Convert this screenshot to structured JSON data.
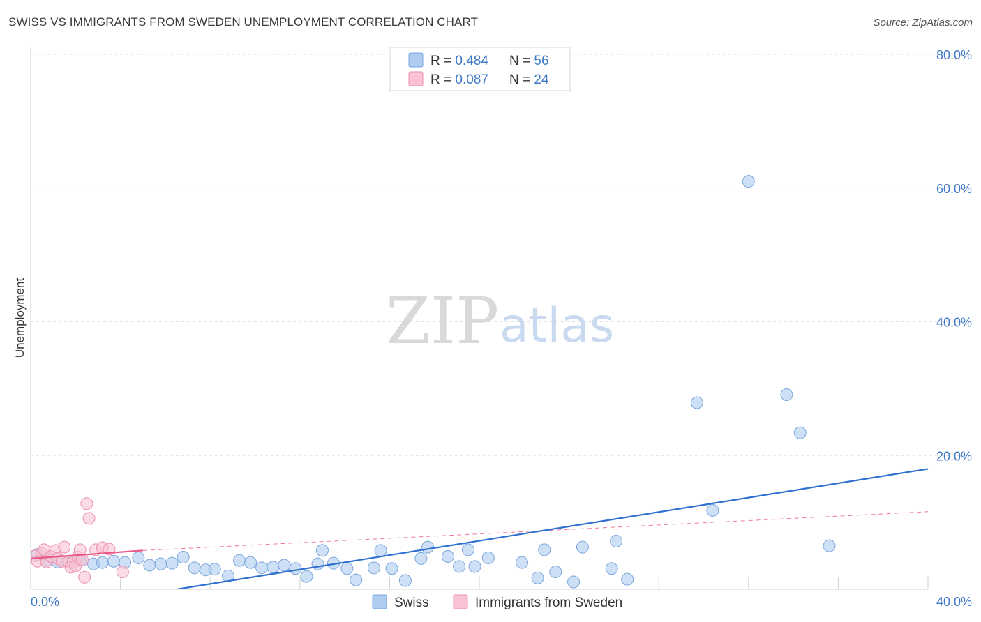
{
  "title": "SWISS VS IMMIGRANTS FROM SWEDEN UNEMPLOYMENT CORRELATION CHART",
  "source": "Source: ZipAtlas.com",
  "watermark": {
    "zip": "ZIP",
    "atlas": "atlas"
  },
  "legend_stats": [
    {
      "r_label": "R = ",
      "r_value": "0.484",
      "n_label": "N = ",
      "n_value": "56",
      "color": "#aecbf0",
      "stroke": "#7aa6dc"
    },
    {
      "r_label": "R = ",
      "r_value": "0.087",
      "n_label": "N = ",
      "n_value": "24",
      "color": "#f9c3d3",
      "stroke": "#ec8fab"
    }
  ],
  "chart_data": {
    "type": "scatter",
    "title": "SWISS VS IMMIGRANTS FROM SWEDEN UNEMPLOYMENT CORRELATION CHART",
    "xlabel": "",
    "ylabel": "Unemployment",
    "xlim": [
      0,
      40
    ],
    "ylim": [
      0,
      80
    ],
    "x_tick_labels": [
      "0.0%",
      "40.0%"
    ],
    "y_ticks": [
      20,
      40,
      60,
      80
    ],
    "y_tick_labels": [
      "20.0%",
      "40.0%",
      "60.0%",
      "80.0%"
    ],
    "legend": [
      "Swiss",
      "Immigrants from Sweden"
    ],
    "series": [
      {
        "name": "Swiss",
        "color": "#aecbf0",
        "stroke": "#7aa6dc",
        "line_color": "#2f6fcf",
        "trend": {
          "x": [
            0,
            40
          ],
          "y": [
            -3.5,
            18
          ]
        },
        "points": [
          [
            0.3,
            5.2
          ],
          [
            0.7,
            4.3
          ],
          [
            1.2,
            4.1
          ],
          [
            1.8,
            4.0
          ],
          [
            2.2,
            4.3
          ],
          [
            2.8,
            3.8
          ],
          [
            3.2,
            4.0
          ],
          [
            3.7,
            4.2
          ],
          [
            4.2,
            4.0
          ],
          [
            4.8,
            4.7
          ],
          [
            5.3,
            3.6
          ],
          [
            5.8,
            3.8
          ],
          [
            6.3,
            3.9
          ],
          [
            6.8,
            4.8
          ],
          [
            7.3,
            3.2
          ],
          [
            7.8,
            2.9
          ],
          [
            8.2,
            3.0
          ],
          [
            8.8,
            2.0
          ],
          [
            9.3,
            4.3
          ],
          [
            9.8,
            4.0
          ],
          [
            10.3,
            3.2
          ],
          [
            10.8,
            3.3
          ],
          [
            11.3,
            3.6
          ],
          [
            11.8,
            3.1
          ],
          [
            12.3,
            1.9
          ],
          [
            12.8,
            3.8
          ],
          [
            13.0,
            5.8
          ],
          [
            13.5,
            3.9
          ],
          [
            14.1,
            3.1
          ],
          [
            14.5,
            1.4
          ],
          [
            15.3,
            3.2
          ],
          [
            15.6,
            5.8
          ],
          [
            16.1,
            3.1
          ],
          [
            16.7,
            1.3
          ],
          [
            17.4,
            4.6
          ],
          [
            17.7,
            6.3
          ],
          [
            18.6,
            4.9
          ],
          [
            19.1,
            3.4
          ],
          [
            19.5,
            5.9
          ],
          [
            19.8,
            3.4
          ],
          [
            20.4,
            4.7
          ],
          [
            21.9,
            4.0
          ],
          [
            22.6,
            1.7
          ],
          [
            22.9,
            5.9
          ],
          [
            23.4,
            2.6
          ],
          [
            24.2,
            1.1
          ],
          [
            24.6,
            6.3
          ],
          [
            25.9,
            3.1
          ],
          [
            26.1,
            7.2
          ],
          [
            26.6,
            1.5
          ],
          [
            29.7,
            27.9
          ],
          [
            30.4,
            11.8
          ],
          [
            32.0,
            61.0
          ],
          [
            33.7,
            29.1
          ],
          [
            34.3,
            23.4
          ],
          [
            35.6,
            6.5
          ]
        ]
      },
      {
        "name": "Immigrants from Sweden",
        "color": "#f9c3d3",
        "stroke": "#ec8fab",
        "line_color": "#e8598a",
        "trend": {
          "x": [
            0,
            5
          ],
          "y": [
            4.6,
            5.8
          ]
        },
        "trend_extension": {
          "x": [
            5,
            40
          ],
          "y": [
            5.8,
            11.6
          ]
        },
        "points": [
          [
            0.2,
            5.0
          ],
          [
            0.3,
            4.2
          ],
          [
            0.5,
            5.3
          ],
          [
            0.6,
            5.9
          ],
          [
            0.7,
            4.1
          ],
          [
            0.9,
            4.9
          ],
          [
            1.1,
            5.8
          ],
          [
            1.2,
            4.6
          ],
          [
            1.4,
            4.2
          ],
          [
            1.5,
            6.3
          ],
          [
            1.7,
            4.1
          ],
          [
            1.8,
            3.3
          ],
          [
            1.9,
            4.1
          ],
          [
            2.0,
            3.5
          ],
          [
            2.1,
            4.8
          ],
          [
            2.2,
            5.9
          ],
          [
            2.3,
            4.4
          ],
          [
            2.4,
            1.8
          ],
          [
            2.5,
            12.8
          ],
          [
            2.6,
            10.6
          ],
          [
            2.9,
            5.9
          ],
          [
            3.2,
            6.2
          ],
          [
            3.5,
            6.0
          ],
          [
            4.1,
            2.6
          ]
        ]
      }
    ]
  }
}
